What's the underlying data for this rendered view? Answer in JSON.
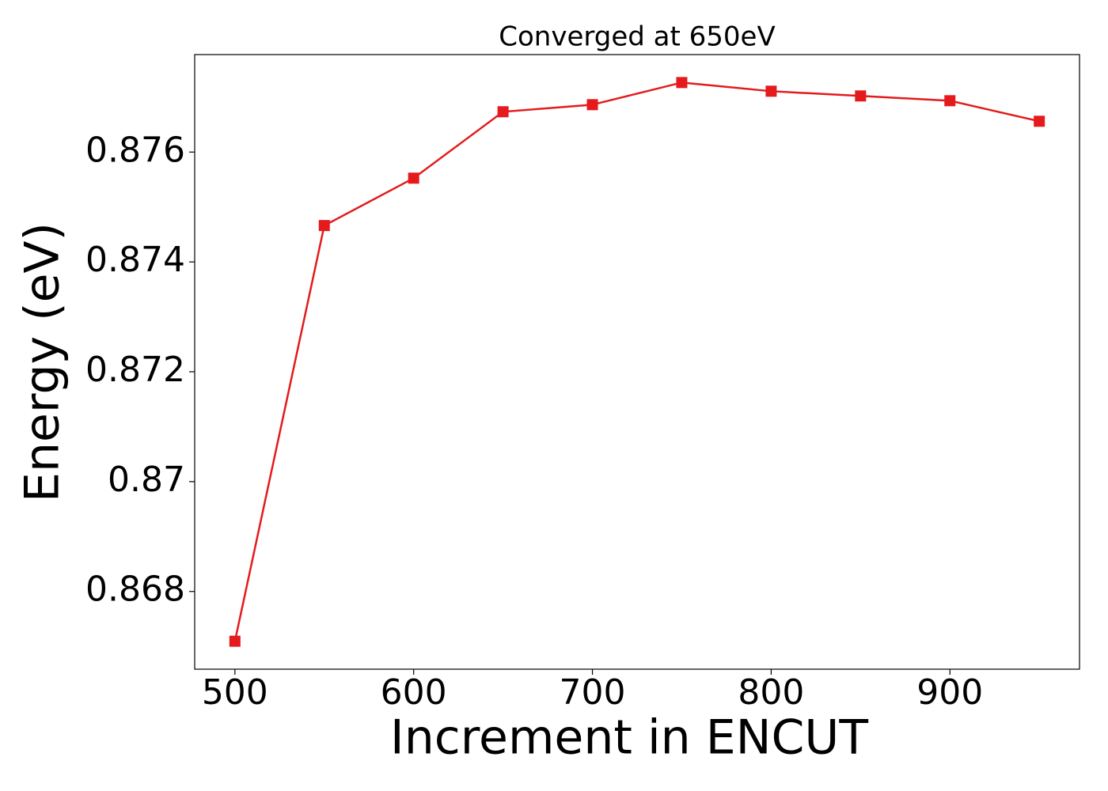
{
  "chart_data": {
    "type": "line",
    "title": "Converged at 650eV",
    "x_label": "Increment in ENCUT",
    "y_label": "Energy (eV)",
    "x": [
      500,
      550,
      600,
      650,
      700,
      750,
      800,
      850,
      900,
      950
    ],
    "series": [
      {
        "color": "#e41a1c",
        "marker": "square",
        "values": [
          0.867094,
          0.874662,
          0.875525,
          0.876734,
          0.876863,
          0.877266,
          0.877108,
          0.877022,
          0.876935,
          0.876561
        ]
      }
    ],
    "xlim": [
      477.5,
      972.5
    ],
    "xticks": [
      500,
      600,
      700,
      800,
      900
    ],
    "ylim": [
      0.866585,
      0.877775
    ],
    "yticks": [
      0.868,
      0.87,
      0.872,
      0.874,
      0.876
    ],
    "grid": false
  }
}
